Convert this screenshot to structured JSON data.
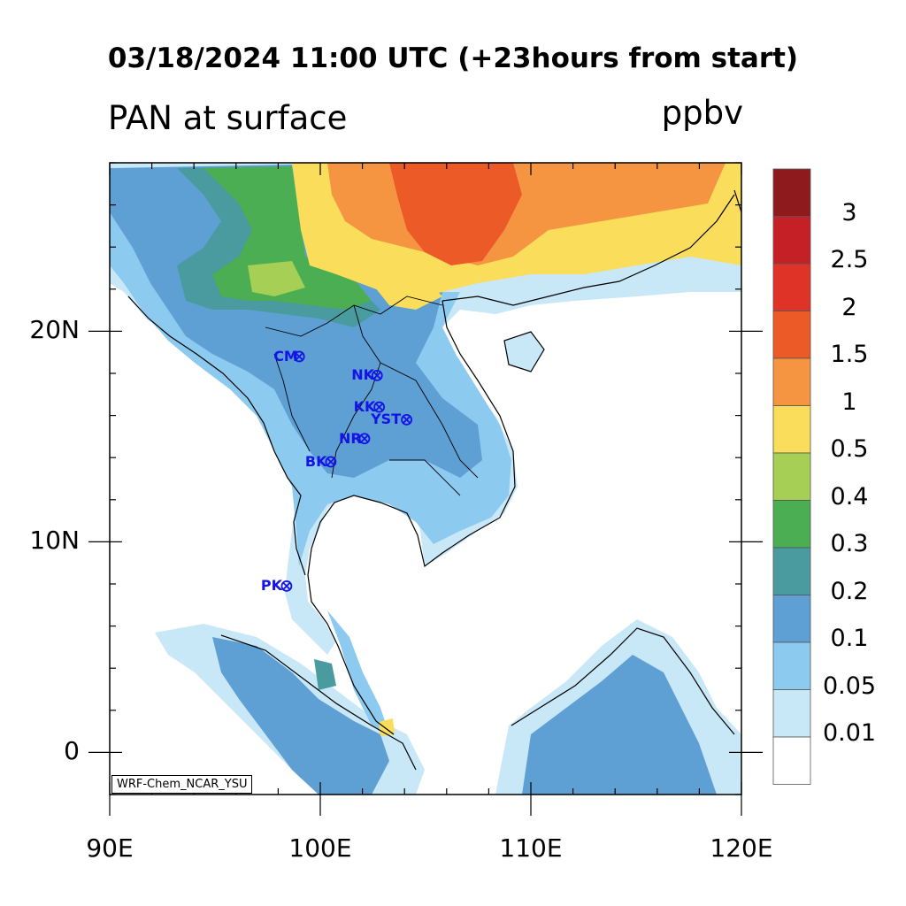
{
  "title": "03/18/2024 11:00 UTC (+23hours from start)",
  "subtitle": "PAN at surface",
  "units": "ppbv",
  "credit": "WRF-Chem_NCAR_YSU",
  "map": {
    "lon_range": [
      90,
      120
    ],
    "lat_range": [
      -2,
      28
    ],
    "lon_ticks": [
      {
        "value": 90,
        "label": "90E"
      },
      {
        "value": 100,
        "label": "100E"
      },
      {
        "value": 110,
        "label": "110E"
      },
      {
        "value": 120,
        "label": "120E"
      }
    ],
    "lat_ticks": [
      {
        "value": 20,
        "label": "20N"
      },
      {
        "value": 10,
        "label": "10N"
      },
      {
        "value": 0,
        "label": "0"
      }
    ],
    "ocean_color": "#ffffff"
  },
  "colorbar": {
    "labels": [
      "3",
      "2.5",
      "2",
      "1.5",
      "1",
      "0.5",
      "0.4",
      "0.3",
      "0.2",
      "0.1",
      "0.05",
      "0.01"
    ],
    "colors_top_to_bottom": [
      "#8e1a1e",
      "#c42026",
      "#df3327",
      "#ec5a27",
      "#f59541",
      "#f9dd5b",
      "#a6cf55",
      "#4bae52",
      "#4a9ba0",
      "#5e9fd4",
      "#8dcaf0",
      "#c8e8f8",
      "#ffffff"
    ]
  },
  "sites": [
    {
      "code": "CM",
      "lon": 99.0,
      "lat": 18.8
    },
    {
      "code": "NK",
      "lon": 102.7,
      "lat": 17.9
    },
    {
      "code": "KK",
      "lon": 102.8,
      "lat": 16.4
    },
    {
      "code": "YST",
      "lon": 104.1,
      "lat": 15.8
    },
    {
      "code": "NR",
      "lon": 102.1,
      "lat": 14.9
    },
    {
      "code": "BK",
      "lon": 100.5,
      "lat": 13.8
    },
    {
      "code": "PK",
      "lon": 98.4,
      "lat": 7.9
    }
  ]
}
